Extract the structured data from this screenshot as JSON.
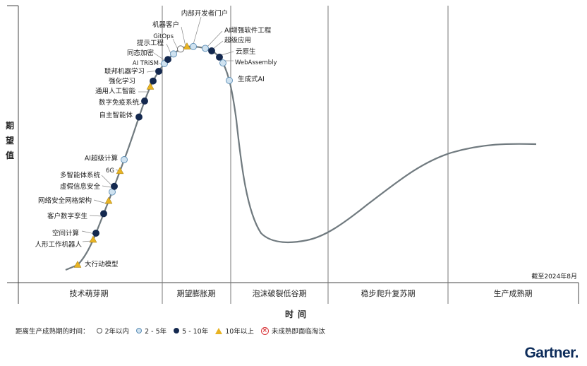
{
  "chart_data": {
    "type": "scatter",
    "subtype": "hype-cycle",
    "xlabel": "时间",
    "ylabel": "期望值",
    "as_of": "截至2024年8月",
    "phases": [
      "技术萌芽期",
      "期望膨胀期",
      "泡沫破裂低谷期",
      "稳步爬升复苏期",
      "生产成熟期"
    ],
    "legend": {
      "title": "距离生产成熟期的时间：",
      "items": [
        {
          "key": "lt2",
          "label": "2年以内"
        },
        {
          "key": "2to5",
          "label": "2 - 5年"
        },
        {
          "key": "5to10",
          "label": "5 - 10年"
        },
        {
          "key": "gt10",
          "label": "10年以上"
        },
        {
          "key": "obsolete",
          "label": "未成熟即面临淘汰"
        }
      ]
    },
    "points": [
      {
        "name": "大行动模型",
        "x": 110,
        "category": "gt10"
      },
      {
        "name": "人形工作机器人",
        "x": 132,
        "category": "gt10"
      },
      {
        "name": "空间计算",
        "x": 136,
        "category": "5to10"
      },
      {
        "name": "客户数字孪生",
        "x": 147,
        "category": "5to10"
      },
      {
        "name": "网络安全网格架构",
        "x": 154,
        "category": "gt10"
      },
      {
        "name": "虚假信息安全",
        "x": 159,
        "category": "2to5"
      },
      {
        "name": "多智能体系统",
        "x": 162,
        "category": "5to10"
      },
      {
        "name": "6G",
        "x": 170,
        "category": "gt10"
      },
      {
        "name": "AI超级计算",
        "x": 176,
        "category": "2to5"
      },
      {
        "name": "自主智能体",
        "x": 197,
        "category": "5to10"
      },
      {
        "name": "数字免疫系统",
        "x": 205,
        "category": "5to10"
      },
      {
        "name": "通用人工智能",
        "x": 213,
        "category": "gt10"
      },
      {
        "name": "强化学习",
        "x": 217,
        "category": "5to10"
      },
      {
        "name": "联邦机器学习",
        "x": 225,
        "category": "5to10"
      },
      {
        "name": "AI TRiSM",
        "x": 233,
        "category": "2to5"
      },
      {
        "name": "同态加密",
        "x": 238,
        "category": "5to10"
      },
      {
        "name": "提示工程",
        "x": 246,
        "category": "2to5"
      },
      {
        "name": "GitOps",
        "x": 256,
        "category": "lt2"
      },
      {
        "name": "机器客户",
        "x": 265,
        "category": "gt10"
      },
      {
        "name": "内部开发者门户",
        "x": 274,
        "category": "2to5"
      },
      {
        "name": "AI增强软件工程",
        "x": 291,
        "category": "2to5"
      },
      {
        "name": "超级应用",
        "x": 300,
        "category": "5to10"
      },
      {
        "name": "云原生",
        "x": 311,
        "category": "5to10"
      },
      {
        "name": "WebAssembly",
        "x": 316,
        "category": "2to5"
      },
      {
        "name": "生成式AI",
        "x": 325,
        "category": "2to5"
      }
    ]
  },
  "colors": {
    "curve": "#707a7f",
    "lt2": "#ffffff",
    "2to5": "#cfe2f0",
    "5to10": "#14294f",
    "gt10": "#e8b323",
    "obsolete": "#d9373b"
  },
  "brand": {
    "name": "Gartner",
    "suffix": "."
  }
}
